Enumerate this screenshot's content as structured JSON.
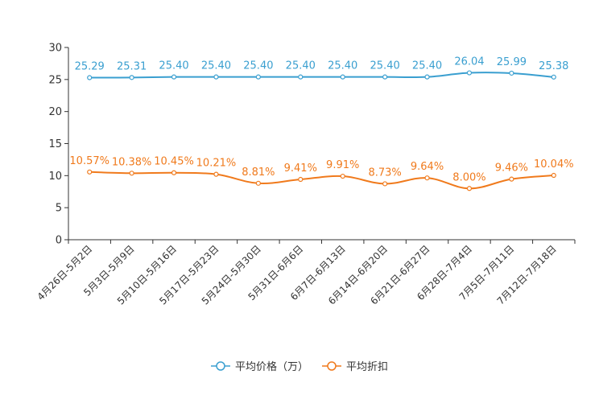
{
  "chart_data": {
    "type": "line",
    "title": "",
    "xlabel": "",
    "ylabel": "",
    "ylim": [
      0,
      30
    ],
    "yticks": [
      0,
      5,
      10,
      15,
      20,
      25,
      30
    ],
    "grid": false,
    "legend_position": "bottom-center",
    "categories": [
      "4月26日-5月2日",
      "5月3日-5月9日",
      "5月10日-5月16日",
      "5月17日-5月23日",
      "5月24日-5月30日",
      "5月31日-6月6日",
      "6月7日-6月13日",
      "6月14日-6月20日",
      "6月21日-6月27日",
      "6月28日-7月4日",
      "7月5日-7月11日",
      "7月12日-7月18日"
    ],
    "series": [
      {
        "name": "平均价格（万）",
        "color": "#3a9fd0",
        "values": [
          25.29,
          25.31,
          25.4,
          25.4,
          25.4,
          25.4,
          25.4,
          25.4,
          25.4,
          26.04,
          25.99,
          25.38
        ],
        "labels": [
          "25.29",
          "25.31",
          "25.40",
          "25.40",
          "25.40",
          "25.40",
          "25.40",
          "25.40",
          "25.40",
          "26.04",
          "25.99",
          "25.38"
        ]
      },
      {
        "name": "平均折扣",
        "color": "#f07a1c",
        "values": [
          10.57,
          10.38,
          10.45,
          10.21,
          8.81,
          9.41,
          9.91,
          8.73,
          9.64,
          8.0,
          9.46,
          10.04
        ],
        "labels": [
          "10.57%",
          "10.38%",
          "10.45%",
          "10.21%",
          "8.81%",
          "9.41%",
          "9.91%",
          "8.73%",
          "9.64%",
          "8.00%",
          "9.46%",
          "10.04%"
        ]
      }
    ]
  }
}
